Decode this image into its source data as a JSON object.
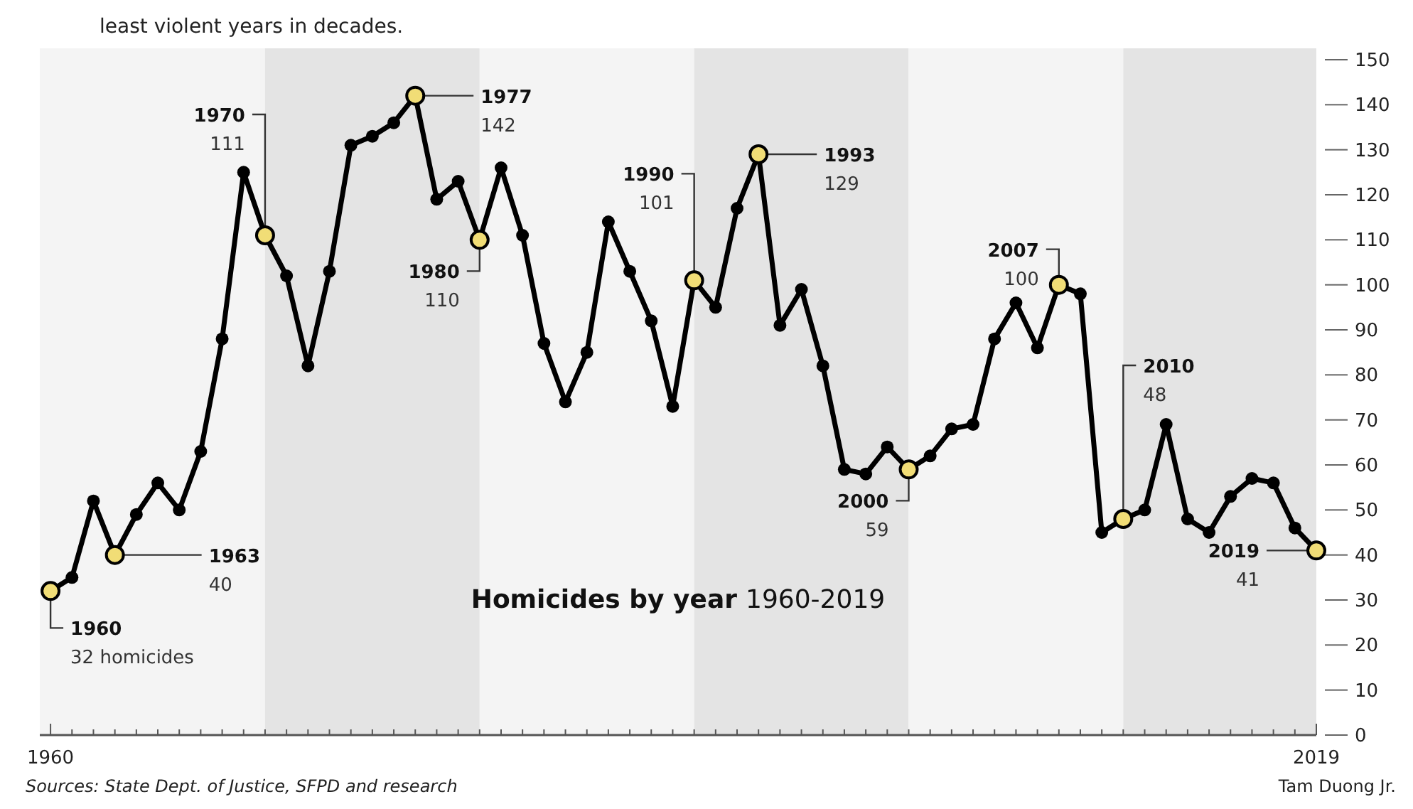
{
  "chart_data": {
    "type": "line",
    "title": "Homicides by year 1960-2019",
    "subtitle": "least violent years in decades.",
    "x": [
      1960,
      1961,
      1962,
      1963,
      1964,
      1965,
      1966,
      1967,
      1968,
      1969,
      1970,
      1971,
      1972,
      1973,
      1974,
      1975,
      1976,
      1977,
      1978,
      1979,
      1980,
      1981,
      1982,
      1983,
      1984,
      1985,
      1986,
      1987,
      1988,
      1989,
      1990,
      1991,
      1992,
      1993,
      1994,
      1995,
      1996,
      1997,
      1998,
      1999,
      2000,
      2001,
      2002,
      2003,
      2004,
      2005,
      2006,
      2007,
      2008,
      2009,
      2010,
      2011,
      2012,
      2013,
      2014,
      2015,
      2016,
      2017,
      2018,
      2019
    ],
    "series": [
      {
        "color": "#000000",
        "values": [
          32,
          35,
          52,
          40,
          49,
          56,
          50,
          63,
          88,
          125,
          111,
          102,
          82,
          103,
          131,
          133,
          136,
          142,
          119,
          123,
          110,
          126,
          111,
          87,
          74,
          85,
          114,
          103,
          92,
          73,
          101,
          95,
          117,
          129,
          91,
          99,
          82,
          59,
          58,
          64,
          59,
          62,
          68,
          69,
          88,
          96,
          86,
          100,
          98,
          45,
          48,
          50,
          69,
          48,
          45,
          53,
          57,
          56,
          46,
          41
        ],
        "colors": [
          "#f1dd76",
          "#000000",
          "#000000",
          "#f1dd76",
          "#000000",
          "#000000",
          "#000000",
          "#000000",
          "#000000",
          "#000000",
          "#f1dd76",
          "#000000",
          "#000000",
          "#000000",
          "#000000",
          "#000000",
          "#000000",
          "#f1dd76",
          "#000000",
          "#000000",
          "#f1dd76",
          "#000000",
          "#000000",
          "#000000",
          "#000000",
          "#000000",
          "#000000",
          "#000000",
          "#000000",
          "#000000",
          "#f1dd76",
          "#000000",
          "#000000",
          "#f1dd76",
          "#000000",
          "#000000",
          "#000000",
          "#000000",
          "#000000",
          "#000000",
          "#f1dd76",
          "#000000",
          "#000000",
          "#000000",
          "#000000",
          "#000000",
          "#000000",
          "#f1dd76",
          "#000000",
          "#000000",
          "#f1dd76",
          "#000000",
          "#000000",
          "#000000",
          "#000000",
          "#000000",
          "#000000",
          "#000000",
          "#000000",
          "#f1dd76"
        ]
      }
    ],
    "xlim": [
      1959.5,
      2019
    ],
    "xticks": [
      {
        "value": 1960,
        "label": "1960"
      },
      {
        "value": 1961,
        "label": null
      },
      {
        "value": 1962,
        "label": null
      },
      {
        "value": 1963,
        "label": null
      },
      {
        "value": 1964,
        "label": null
      },
      {
        "value": 1965,
        "label": null
      },
      {
        "value": 1966,
        "label": null
      },
      {
        "value": 1967,
        "label": null
      },
      {
        "value": 1968,
        "label": null
      },
      {
        "value": 1969,
        "label": null
      },
      {
        "value": 1970,
        "label": null
      },
      {
        "value": 1971,
        "label": null
      },
      {
        "value": 1972,
        "label": null
      },
      {
        "value": 1973,
        "label": null
      },
      {
        "value": 1974,
        "label": null
      },
      {
        "value": 1975,
        "label": null
      },
      {
        "value": 1976,
        "label": null
      },
      {
        "value": 1977,
        "label": null
      },
      {
        "value": 1978,
        "label": null
      },
      {
        "value": 1979,
        "label": null
      },
      {
        "value": 1980,
        "label": null
      },
      {
        "value": 1981,
        "label": null
      },
      {
        "value": 1982,
        "label": null
      },
      {
        "value": 1983,
        "label": null
      },
      {
        "value": 1984,
        "label": null
      },
      {
        "value": 1985,
        "label": null
      },
      {
        "value": 1986,
        "label": null
      },
      {
        "value": 1987,
        "label": null
      },
      {
        "value": 1988,
        "label": null
      },
      {
        "value": 1989,
        "label": null
      },
      {
        "value": 1990,
        "label": null
      },
      {
        "value": 1991,
        "label": null
      },
      {
        "value": 1992,
        "label": null
      },
      {
        "value": 1993,
        "label": null
      },
      {
        "value": 1994,
        "label": null
      },
      {
        "value": 1995,
        "label": null
      },
      {
        "value": 1996,
        "label": null
      },
      {
        "value": 1997,
        "label": null
      },
      {
        "value": 1998,
        "label": null
      },
      {
        "value": 1999,
        "label": null
      },
      {
        "value": 2000,
        "label": null
      },
      {
        "value": 2001,
        "label": null
      },
      {
        "value": 2002,
        "label": null
      },
      {
        "value": 2003,
        "label": null
      },
      {
        "value": 2004,
        "label": null
      },
      {
        "value": 2005,
        "label": null
      },
      {
        "value": 2006,
        "label": null
      },
      {
        "value": 2007,
        "label": null
      },
      {
        "value": 2008,
        "label": null
      },
      {
        "value": 2009,
        "label": null
      },
      {
        "value": 2010,
        "label": null
      },
      {
        "value": 2011,
        "label": null
      },
      {
        "value": 2012,
        "label": null
      },
      {
        "value": 2013,
        "label": null
      },
      {
        "value": 2014,
        "label": null
      },
      {
        "value": 2015,
        "label": null
      },
      {
        "value": 2016,
        "label": null
      },
      {
        "value": 2017,
        "label": null
      },
      {
        "value": 2018,
        "label": null
      },
      {
        "value": 2019,
        "label": "2019"
      }
    ],
    "ylim": [
      0,
      150
    ],
    "yticks": [
      0,
      10,
      20,
      30,
      40,
      50,
      60,
      70,
      80,
      90,
      100,
      110,
      120,
      130,
      140,
      150
    ],
    "marker": "circle",
    "grid": false,
    "bands": [
      {
        "axis": "x",
        "from": 1959.5,
        "to": 1970,
        "color": "#f4f4f4"
      },
      {
        "axis": "x",
        "from": 1970,
        "to": 1980,
        "color": "#e4e4e4"
      },
      {
        "axis": "x",
        "from": 1980,
        "to": 1990,
        "color": "#f4f4f4"
      },
      {
        "axis": "x",
        "from": 1990,
        "to": 2000,
        "color": "#e4e4e4"
      },
      {
        "axis": "x",
        "from": 2000,
        "to": 2010,
        "color": "#f4f4f4"
      },
      {
        "axis": "x",
        "from": 2010,
        "to": 2019,
        "color": "#e4e4e4"
      }
    ],
    "annotations": [
      {
        "text": "1960\n32 homicides",
        "x": 1960,
        "y": 32
      },
      {
        "text": "1963\n40",
        "x": 1963,
        "y": 40
      },
      {
        "text": "1970\n111",
        "x": 1970,
        "y": 111
      },
      {
        "text": "1977\n142",
        "x": 1977,
        "y": 142
      },
      {
        "text": "1980\n110",
        "x": 1980,
        "y": 110
      },
      {
        "text": "1990\n101",
        "x": 1990,
        "y": 101
      },
      {
        "text": "1993\n129",
        "x": 1993,
        "y": 129
      },
      {
        "text": "2000\n59",
        "x": 2000,
        "y": 59
      },
      {
        "text": "2007\n100",
        "x": 2007,
        "y": 100
      },
      {
        "text": "2010\n48",
        "x": 2010,
        "y": 48
      },
      {
        "text": "2019\n41",
        "x": 2019,
        "y": 41
      },
      "Sources: State Dept. of Justice, SFPD and research",
      "Tam Duong Jr."
    ]
  }
}
